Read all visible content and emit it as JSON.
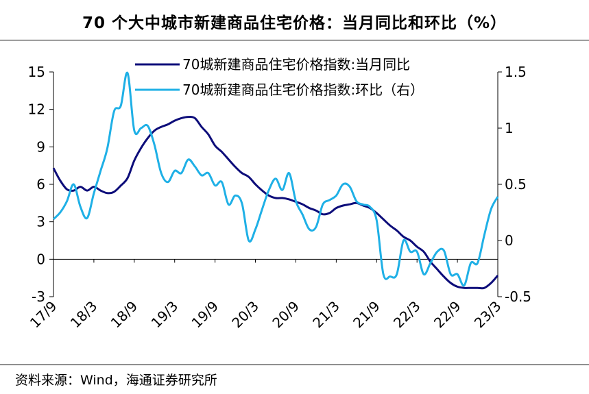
{
  "title": "70 个大中城市新建商品住宅价格：当月同比和环比（%）",
  "source": "资料来源：Wind，海通证券研究所",
  "chart_data": {
    "type": "line",
    "x_tick_labels": [
      "17/9",
      "18/3",
      "18/9",
      "19/3",
      "19/9",
      "20/3",
      "20/9",
      "21/3",
      "21/9",
      "22/3",
      "22/9",
      "23/3"
    ],
    "x_range": [
      0,
      66
    ],
    "y_left": {
      "ticks": [
        "15",
        "12",
        "9",
        "6",
        "3",
        "0",
        "-3"
      ],
      "range": [
        -3,
        15
      ]
    },
    "y_right": {
      "ticks": [
        "1.5",
        "1",
        "0.5",
        "0",
        "-0.5"
      ],
      "range": [
        -0.5,
        1.5
      ]
    },
    "legend_position": "top-center",
    "series": [
      {
        "name": "70城新建商品住宅价格指数:当月同比",
        "axis": "left",
        "color": "#0d0d7a",
        "x": [
          0,
          1,
          2,
          3,
          4,
          5,
          6,
          7,
          8,
          9,
          10,
          11,
          12,
          13,
          14,
          15,
          16,
          17,
          18,
          19,
          20,
          21,
          22,
          23,
          24,
          25,
          26,
          27,
          28,
          29,
          30,
          31,
          32,
          33,
          34,
          35,
          36,
          37,
          38,
          39,
          40,
          41,
          42,
          43,
          44,
          45,
          46,
          47,
          48,
          49,
          50,
          51,
          52,
          53,
          54,
          55,
          56,
          57,
          58,
          59,
          60,
          61,
          62,
          63,
          64,
          65,
          66
        ],
        "values": [
          7.3,
          6.3,
          5.6,
          5.5,
          5.8,
          5.5,
          5.8,
          5.5,
          5.3,
          5.4,
          5.9,
          6.5,
          7.9,
          8.9,
          9.7,
          10.3,
          10.6,
          10.8,
          11.1,
          11.3,
          11.4,
          11.3,
          10.6,
          10.0,
          9.1,
          8.6,
          8.0,
          7.4,
          6.9,
          6.6,
          6.0,
          5.5,
          5.1,
          4.9,
          4.9,
          4.8,
          4.6,
          4.4,
          4.1,
          3.9,
          3.6,
          3.7,
          4.1,
          4.3,
          4.4,
          4.5,
          4.3,
          4.1,
          3.7,
          3.2,
          2.7,
          2.3,
          1.8,
          1.5,
          1.0,
          0.6,
          -0.2,
          -0.8,
          -1.4,
          -1.9,
          -2.2,
          -2.3,
          -2.3,
          -2.3,
          -2.3,
          -1.9,
          -1.3
        ]
      },
      {
        "name": "70城新建商品住宅价格指数:环比（右）",
        "axis": "right",
        "color": "#1fb0e6",
        "x": [
          0,
          1,
          2,
          3,
          4,
          5,
          6,
          7,
          8,
          9,
          10,
          11,
          12,
          13,
          14,
          15,
          16,
          17,
          18,
          19,
          20,
          21,
          22,
          23,
          24,
          25,
          26,
          27,
          28,
          29,
          30,
          31,
          32,
          33,
          34,
          35,
          36,
          37,
          38,
          39,
          40,
          41,
          42,
          43,
          44,
          45,
          46,
          47,
          48,
          49,
          50,
          51,
          52,
          53,
          54,
          55,
          56,
          57,
          58,
          59,
          60,
          61,
          62,
          63,
          64,
          65,
          66
        ],
        "values": [
          0.19,
          0.25,
          0.35,
          0.5,
          0.3,
          0.2,
          0.42,
          0.62,
          0.82,
          1.15,
          1.2,
          1.49,
          0.98,
          1.0,
          1.02,
          0.85,
          0.6,
          0.52,
          0.62,
          0.6,
          0.72,
          0.66,
          0.58,
          0.6,
          0.49,
          0.52,
          0.32,
          0.4,
          0.33,
          0.0,
          0.1,
          0.28,
          0.45,
          0.55,
          0.45,
          0.6,
          0.35,
          0.23,
          0.1,
          0.12,
          0.32,
          0.36,
          0.4,
          0.5,
          0.48,
          0.35,
          0.32,
          0.3,
          0.18,
          -0.3,
          -0.32,
          -0.3,
          0.0,
          -0.1,
          -0.1,
          -0.3,
          -0.2,
          -0.1,
          -0.09,
          -0.3,
          -0.3,
          -0.4,
          -0.2,
          -0.2,
          0.05,
          0.28,
          0.39
        ]
      }
    ]
  }
}
